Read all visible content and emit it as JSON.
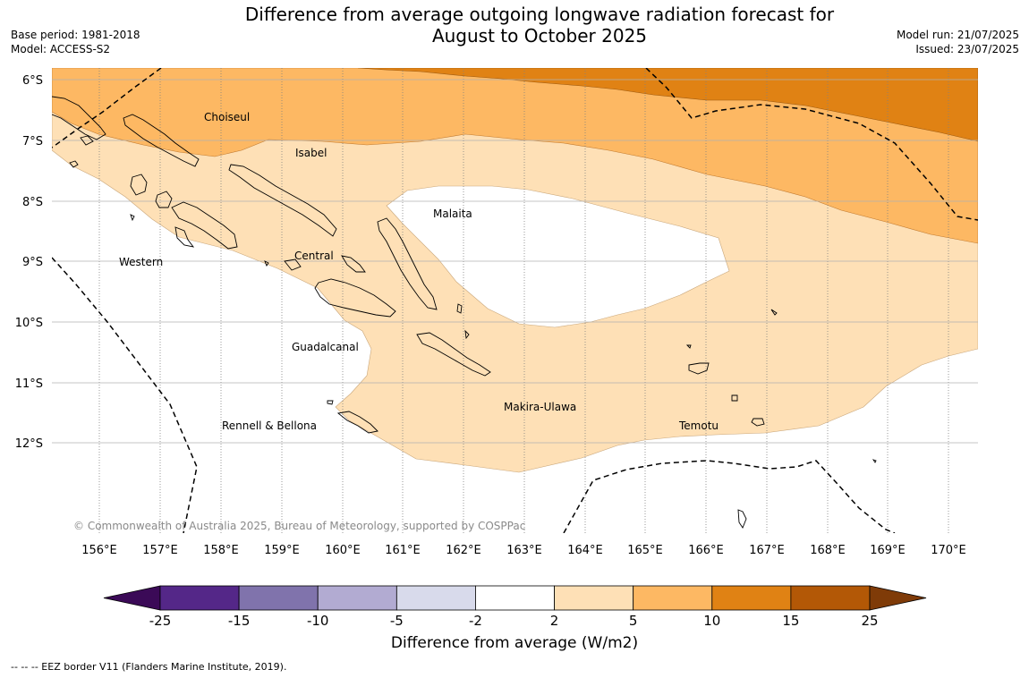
{
  "title_line1": "Difference from average outgoing longwave radiation forecast for",
  "title_line2": "August to October 2025",
  "base_period": "Base period: 1981-2018",
  "model": "Model: ACCESS-S2",
  "model_run": "Model run: 21/07/2025",
  "issued": "Issued: 23/07/2025",
  "copyright": "© Commonwealth of Australia 2025, Bureau of Meteorology, supported by COSPPac",
  "footnote": "--  --  -- EEZ border V11 (Flanders Marine Institute, 2019).",
  "colorbar": {
    "title": "Difference from average (W/m2)",
    "ticks": [
      "-25",
      "-15",
      "-10",
      "-5",
      "-2",
      "2",
      "5",
      "10",
      "15",
      "25"
    ],
    "colors": [
      "#3b0a57",
      "#542788",
      "#8073ac",
      "#b2abd2",
      "#d8daeb",
      "#ffffff",
      "#fee0b6",
      "#fdb863",
      "#e08214",
      "#b35806",
      "#7f3b08"
    ]
  },
  "map": {
    "lon_labels": [
      "156°E",
      "157°E",
      "158°E",
      "159°E",
      "160°E",
      "161°E",
      "162°E",
      "163°E",
      "164°E",
      "165°E",
      "166°E",
      "167°E",
      "168°E",
      "169°E",
      "170°E"
    ],
    "lat_labels": [
      "6°S",
      "7°S",
      "8°S",
      "9°S",
      "10°S",
      "11°S",
      "12°S"
    ],
    "province_labels": [
      "Choiseul",
      "Isabel",
      "Malaita",
      "Western",
      "Central",
      "Guadalcanal",
      "Rennell & Bellona",
      "Makira-Ulawa",
      "Temotu"
    ]
  }
}
